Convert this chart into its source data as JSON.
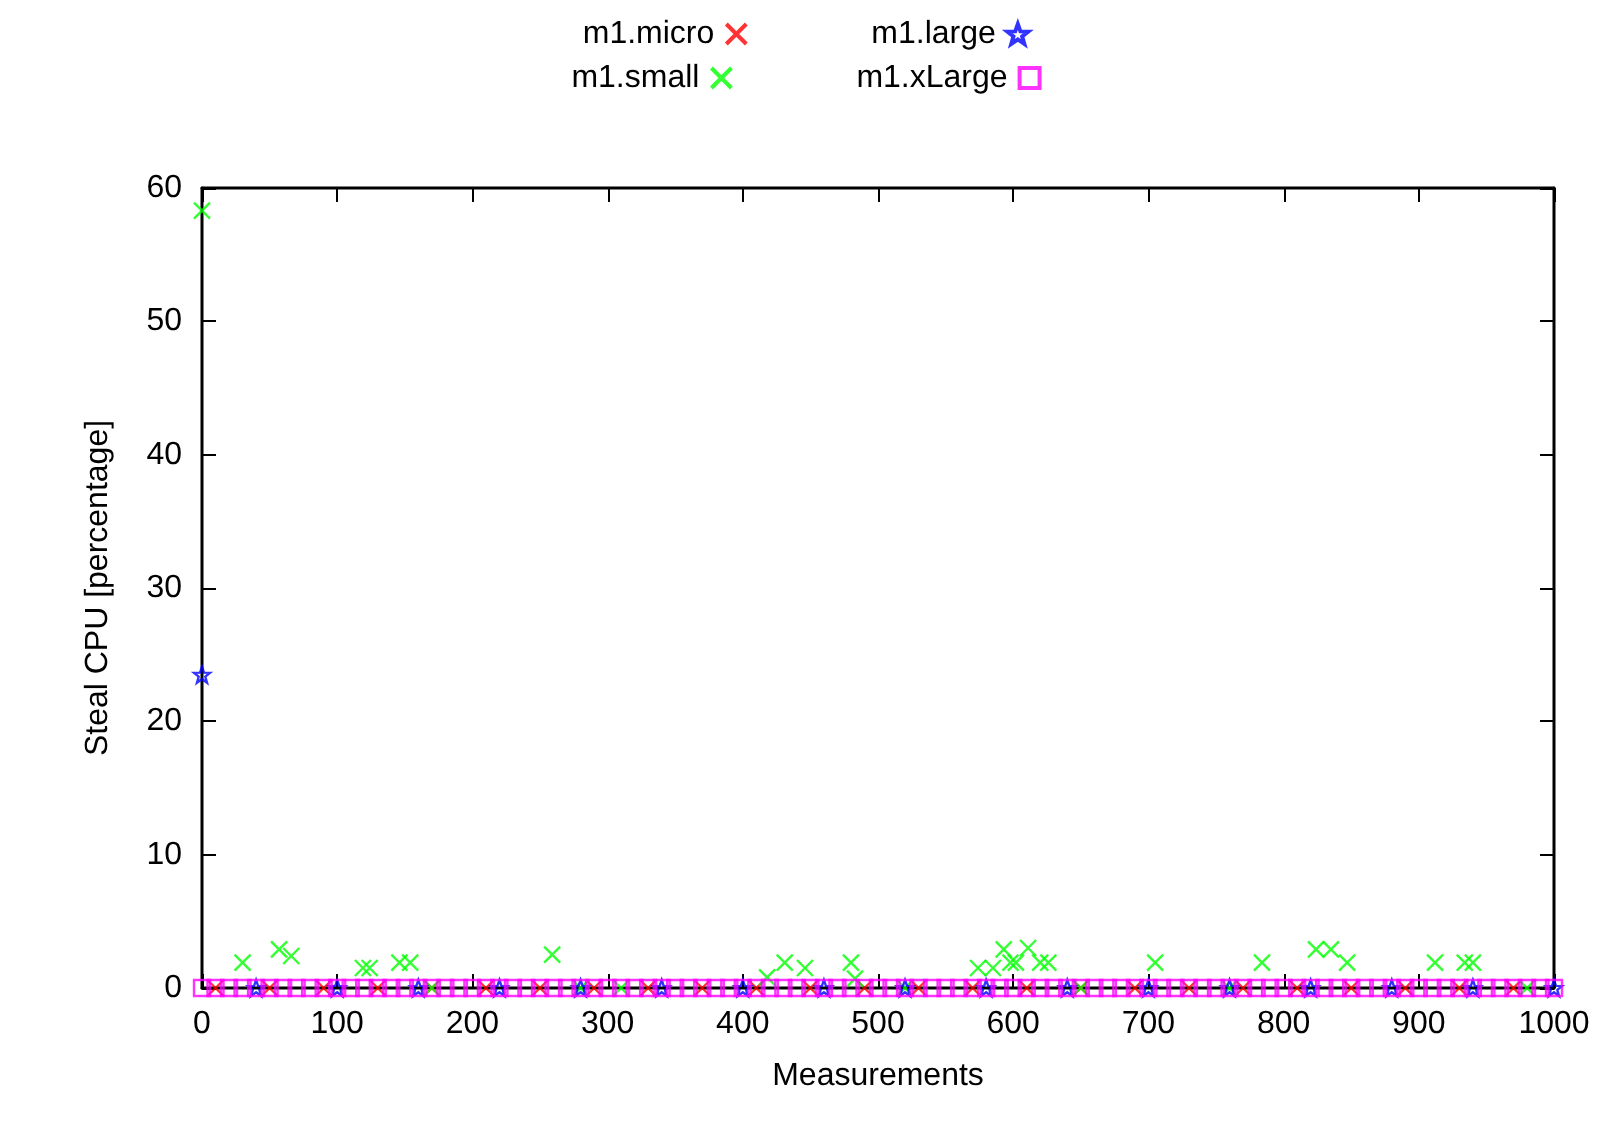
{
  "chart_data": {
    "type": "scatter",
    "xlabel": "Measurements",
    "ylabel": "Steal CPU [percentage]",
    "xlim": [
      0,
      1000
    ],
    "xticks": [
      0,
      100,
      200,
      300,
      400,
      500,
      600,
      700,
      800,
      900,
      1000
    ],
    "ylim": [
      0,
      60
    ],
    "yticks": [
      0,
      10,
      20,
      30,
      40,
      50,
      60
    ],
    "grid": false,
    "legend": "top",
    "series": [
      {
        "name": "m1.micro",
        "color": "#ff0000",
        "marker": "cross",
        "x": [
          10,
          50,
          90,
          130,
          170,
          210,
          250,
          290,
          330,
          370,
          410,
          450,
          490,
          530,
          570,
          610,
          650,
          690,
          730,
          770,
          810,
          850,
          890,
          930,
          970
        ],
        "values": [
          0,
          0,
          0,
          0,
          0,
          0,
          0,
          0,
          0,
          0,
          0,
          0,
          0,
          0,
          0,
          0,
          0,
          0,
          0,
          0,
          0,
          0,
          0,
          0,
          0
        ]
      },
      {
        "name": "m1.small",
        "color": "#00ff00",
        "marker": "cross",
        "x": [
          0,
          30,
          57,
          66,
          119,
          124,
          146,
          154,
          259,
          418,
          431,
          446,
          480,
          483,
          574,
          585,
          593,
          598,
          602,
          611,
          620,
          626,
          705,
          784,
          824,
          835,
          847,
          912,
          934,
          940,
          170,
          280,
          310,
          520,
          650,
          760,
          980
        ],
        "values": [
          58.3,
          1.9,
          2.9,
          2.4,
          1.5,
          1.5,
          1.9,
          1.9,
          2.5,
          0.8,
          1.9,
          1.5,
          1.9,
          0.7,
          1.5,
          1.5,
          2.9,
          1.9,
          1.9,
          3.0,
          1.9,
          1.9,
          1.9,
          1.9,
          2.9,
          2.9,
          1.9,
          1.9,
          1.9,
          1.9,
          0,
          0,
          0,
          0,
          0,
          0,
          0
        ]
      },
      {
        "name": "m1.large",
        "color": "#0000ff",
        "marker": "star",
        "x": [
          0,
          40,
          100,
          160,
          220,
          280,
          340,
          400,
          460,
          520,
          580,
          640,
          700,
          760,
          820,
          880,
          940,
          1000
        ],
        "values": [
          23.5,
          0,
          0,
          0,
          0,
          0,
          0,
          0,
          0,
          0,
          0,
          0,
          0,
          0,
          0,
          0,
          0,
          0
        ]
      },
      {
        "name": "m1.xLarge",
        "color": "#ff00ff",
        "marker": "square",
        "x": [
          0,
          10,
          20,
          30,
          40,
          50,
          60,
          70,
          80,
          90,
          100,
          110,
          120,
          130,
          140,
          150,
          160,
          170,
          180,
          190,
          200,
          210,
          220,
          230,
          240,
          250,
          260,
          270,
          280,
          290,
          300,
          310,
          320,
          330,
          340,
          350,
          360,
          370,
          380,
          390,
          400,
          410,
          420,
          430,
          440,
          450,
          460,
          470,
          480,
          490,
          500,
          510,
          520,
          530,
          540,
          550,
          560,
          570,
          580,
          590,
          600,
          610,
          620,
          630,
          640,
          650,
          660,
          670,
          680,
          690,
          700,
          710,
          720,
          730,
          740,
          750,
          760,
          770,
          780,
          790,
          800,
          810,
          820,
          830,
          840,
          850,
          860,
          870,
          880,
          890,
          900,
          910,
          920,
          930,
          940,
          950,
          960,
          970,
          980,
          990,
          1000
        ],
        "values": [
          0,
          0,
          0,
          0,
          0,
          0,
          0,
          0,
          0,
          0,
          0,
          0,
          0,
          0,
          0,
          0,
          0,
          0,
          0,
          0,
          0,
          0,
          0,
          0,
          0,
          0,
          0,
          0,
          0,
          0,
          0,
          0,
          0,
          0,
          0,
          0,
          0,
          0,
          0,
          0,
          0,
          0,
          0,
          0,
          0,
          0,
          0,
          0,
          0,
          0,
          0,
          0,
          0,
          0,
          0,
          0,
          0,
          0,
          0,
          0,
          0,
          0,
          0,
          0,
          0,
          0,
          0,
          0,
          0,
          0,
          0,
          0,
          0,
          0,
          0,
          0,
          0,
          0,
          0,
          0,
          0,
          0,
          0,
          0,
          0,
          0,
          0,
          0,
          0,
          0,
          0,
          0,
          0,
          0,
          0,
          0,
          0,
          0,
          0,
          0,
          0
        ]
      }
    ]
  }
}
